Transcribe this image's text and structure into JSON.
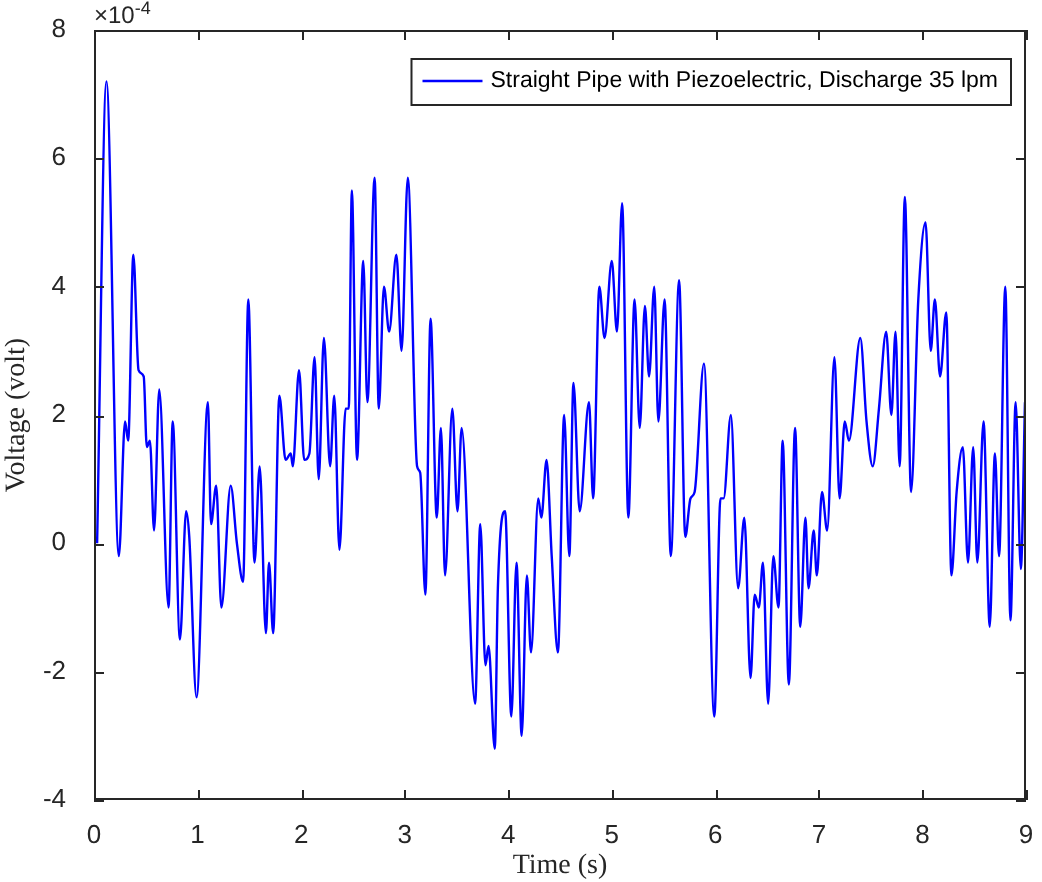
{
  "chart_data": {
    "type": "line",
    "xlabel": "Time (s)",
    "ylabel": "Voltage (volt)",
    "annotations": [
      "×10$^{-4}$"
    ],
    "legend": "top right",
    "grid": false,
    "marker": "none",
    "line_style": "solid",
    "xlim": [
      0,
      9
    ],
    "xticks": [
      0,
      1,
      2,
      3,
      4,
      5,
      6,
      7,
      8,
      9
    ],
    "ylim": [
      -4,
      8
    ],
    "yticks": [
      -4,
      -2,
      0,
      2,
      4,
      6,
      8
    ],
    "series": [
      {
        "name": "Straight Pipe with Piezoelectric, Discharge 35 lpm",
        "color": "#0000ff",
        "x": [
          0.03,
          0.12,
          0.24,
          0.3,
          0.33,
          0.38,
          0.43,
          0.48,
          0.51,
          0.54,
          0.58,
          0.63,
          0.72,
          0.76,
          0.83,
          0.89,
          0.92,
          0.99,
          1.1,
          1.13,
          1.18,
          1.23,
          1.32,
          1.38,
          1.44,
          1.49,
          1.55,
          1.6,
          1.66,
          1.69,
          1.73,
          1.79,
          1.85,
          1.9,
          1.92,
          1.98,
          2.03,
          2.08,
          2.13,
          2.17,
          2.22,
          2.28,
          2.32,
          2.37,
          2.43,
          2.46,
          2.49,
          2.54,
          2.6,
          2.64,
          2.71,
          2.75,
          2.8,
          2.85,
          2.92,
          2.97,
          3.03,
          3.12,
          3.15,
          3.2,
          3.25,
          3.31,
          3.35,
          3.39,
          3.46,
          3.51,
          3.55,
          3.68,
          3.73,
          3.78,
          3.81,
          3.87,
          3.9,
          3.97,
          4.03,
          4.08,
          4.13,
          4.18,
          4.22,
          4.29,
          4.32,
          4.37,
          4.42,
          4.48,
          4.54,
          4.59,
          4.63,
          4.69,
          4.78,
          4.82,
          4.88,
          4.93,
          5.0,
          5.05,
          5.1,
          5.16,
          5.22,
          5.27,
          5.32,
          5.36,
          5.41,
          5.45,
          5.51,
          5.57,
          5.65,
          5.71,
          5.76,
          5.8,
          5.89,
          5.99,
          6.05,
          6.08,
          6.15,
          6.22,
          6.28,
          6.34,
          6.38,
          6.42,
          6.46,
          6.51,
          6.56,
          6.61,
          6.65,
          6.71,
          6.77,
          6.82,
          6.87,
          6.9,
          6.95,
          6.98,
          7.03,
          7.08,
          7.15,
          7.2,
          7.25,
          7.29,
          7.4,
          7.46,
          7.52,
          7.58,
          7.65,
          7.7,
          7.74,
          7.78,
          7.83,
          7.89,
          7.96,
          8.03,
          8.08,
          8.12,
          8.17,
          8.23,
          8.28,
          8.33,
          8.39,
          8.44,
          8.49,
          8.53,
          8.59,
          8.65,
          8.7,
          8.74,
          8.8,
          8.85,
          8.9,
          8.95,
          8.99
        ],
        "values": [
          0,
          7.2,
          -0.2,
          1.9,
          1.6,
          4.5,
          2.7,
          2.6,
          1.5,
          1.6,
          0.2,
          2.4,
          -1,
          1.9,
          -1.5,
          0.5,
          0.1,
          -2.4,
          2.2,
          0.3,
          0.9,
          -1,
          0.9,
          0,
          -0.6,
          3.8,
          -0.3,
          1.2,
          -1.4,
          -0.3,
          -1.4,
          2.3,
          1.3,
          1.4,
          1.2,
          2.7,
          1.3,
          1.4,
          2.9,
          1,
          3.2,
          1.2,
          2.3,
          -0.1,
          2.1,
          2.1,
          5.5,
          1.3,
          4.4,
          2.2,
          5.7,
          2.1,
          4,
          3.3,
          4.5,
          3,
          5.7,
          1.2,
          1.1,
          -0.8,
          3.5,
          0.4,
          1.8,
          -0.5,
          2.1,
          0.5,
          1.8,
          -2.5,
          0.3,
          -1.9,
          -1.6,
          -3.2,
          -0.7,
          0.5,
          -2.7,
          -0.3,
          -3,
          -0.5,
          -1.7,
          0.7,
          0.4,
          1.3,
          -0.2,
          -1.7,
          2,
          -0.2,
          2.5,
          0.5,
          2.2,
          0.7,
          4,
          3.2,
          4.4,
          3.3,
          5.3,
          0.4,
          3.8,
          1.8,
          3.7,
          2.6,
          4,
          1.9,
          3.8,
          -0.2,
          4.1,
          0.1,
          0.7,
          0.8,
          2.8,
          -2.7,
          0.7,
          0.7,
          2,
          -0.7,
          0.4,
          -2.1,
          -0.8,
          -1,
          -0.3,
          -2.5,
          -0.2,
          -1,
          1.6,
          -2.2,
          1.8,
          -1.3,
          0.4,
          -0.7,
          0.2,
          -0.5,
          0.8,
          0.2,
          2.9,
          0.7,
          1.9,
          1.6,
          3.2,
          1.9,
          1.2,
          2.1,
          3.3,
          2,
          3.3,
          1.2,
          5.4,
          0.8,
          3.8,
          5,
          3,
          3.8,
          2.6,
          3.6,
          -0.5,
          0.8,
          1.5,
          -0.3,
          1.5,
          -0.3,
          1.9,
          -1.3,
          1.4,
          -0.2,
          4,
          -1.2,
          2.2,
          -0.4,
          2.2
        ]
      }
    ]
  }
}
